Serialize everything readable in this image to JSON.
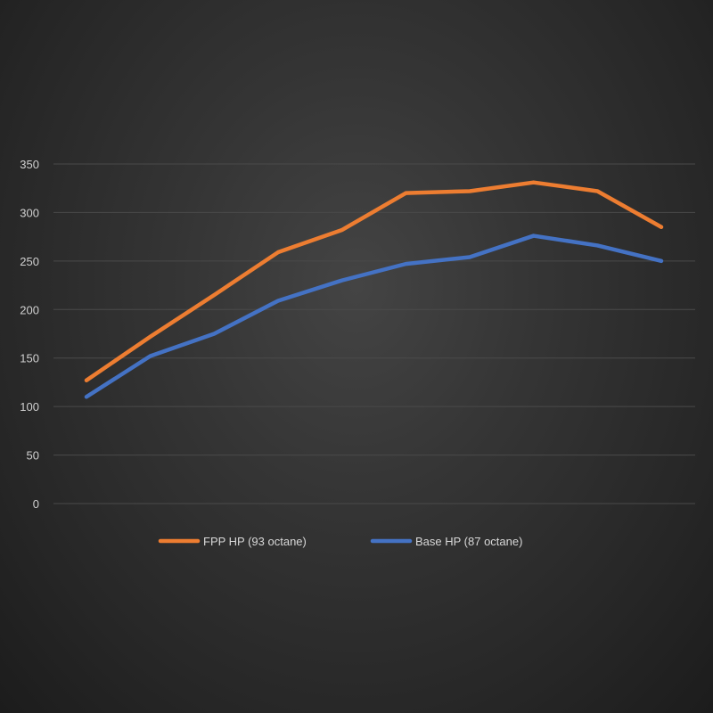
{
  "chart_data": {
    "type": "line",
    "title": "",
    "xlabel": "",
    "ylabel": "",
    "ylim": [
      0,
      350
    ],
    "yticks": [
      "0",
      "50",
      "100",
      "150",
      "200",
      "250",
      "300",
      "350"
    ],
    "grid": true,
    "legend_placement": "bottom",
    "x": [
      1,
      2,
      3,
      4,
      5,
      6,
      7,
      8,
      9,
      10
    ],
    "series": [
      {
        "name": "FPP HP (93 octane)",
        "color": "#ed7d31",
        "values": [
          127,
          172,
          215,
          259,
          282,
          320,
          322,
          331,
          322,
          285
        ]
      },
      {
        "name": "Base HP (87 octane)",
        "color": "#4472c4",
        "values": [
          110,
          152,
          175,
          209,
          230,
          247,
          254,
          276,
          266,
          250
        ]
      }
    ],
    "background": "#2f2f2f",
    "gridline_color": "#4a4a4a"
  }
}
